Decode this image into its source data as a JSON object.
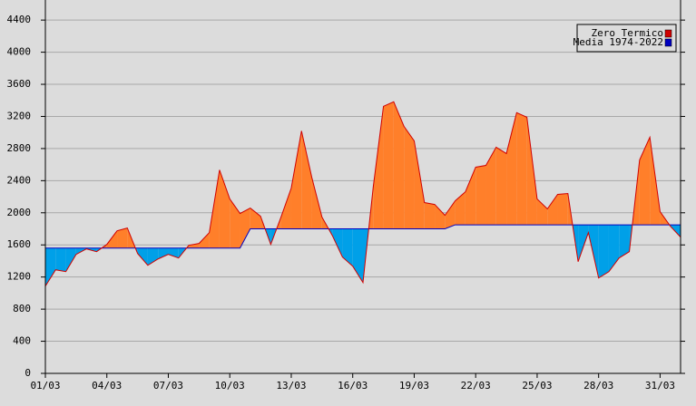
{
  "chart_data": {
    "type": "area",
    "categories": [
      "01/03",
      null,
      null,
      null,
      null,
      null,
      "04/03",
      null,
      null,
      null,
      null,
      null,
      "07/03",
      null,
      null,
      null,
      null,
      null,
      "10/03",
      null,
      null,
      null,
      null,
      null,
      "13/03",
      null,
      null,
      null,
      null,
      null,
      "16/03",
      null,
      null,
      null,
      null,
      null,
      "19/03",
      null,
      null,
      null,
      null,
      null,
      "22/03",
      null,
      null,
      null,
      null,
      null,
      "25/03",
      null,
      null,
      null,
      null,
      null,
      "28/03",
      null,
      null,
      null,
      null,
      null,
      "31/03",
      null,
      null
    ],
    "series": [
      {
        "name": "Zero Termico",
        "color": "#d00000",
        "values": [
          1086,
          1290,
          1267,
          1482,
          1550,
          1516,
          1606,
          1776,
          1810,
          1493,
          1346,
          1425,
          1482,
          1437,
          1595,
          1618,
          1753,
          2534,
          2172,
          1991,
          2059,
          1957,
          1606,
          1946,
          2308,
          3020,
          2443,
          1946,
          1719,
          1448,
          1335,
          1131,
          2319,
          3326,
          3382,
          3077,
          2896,
          2127,
          2104,
          1968,
          2149,
          2262,
          2568,
          2590,
          2817,
          2738,
          3247,
          3190,
          2172,
          2048,
          2229,
          2240,
          1391,
          1753,
          1188,
          1267,
          1437,
          1516,
          2658,
          2941,
          2014,
          1833,
          1697
        ]
      },
      {
        "name": "Media 1974-2022",
        "color": "#0000c0",
        "values": [
          1560,
          1560,
          1560,
          1560,
          1560,
          1560,
          1560,
          1560,
          1560,
          1560,
          1560,
          1560,
          1560,
          1560,
          1560,
          1560,
          1560,
          1560,
          1560,
          1560,
          1800,
          1800,
          1800,
          1800,
          1800,
          1800,
          1800,
          1800,
          1800,
          1800,
          1800,
          1800,
          1800,
          1800,
          1800,
          1800,
          1800,
          1800,
          1800,
          1800,
          1850,
          1850,
          1850,
          1850,
          1850,
          1850,
          1850,
          1850,
          1850,
          1850,
          1850,
          1850,
          1850,
          1850,
          1850,
          1850,
          1850,
          1850,
          1850,
          1850,
          1850,
          1850,
          1850
        ]
      }
    ],
    "fill_above": "#ff7f2a",
    "fill_below": "#00a0e8",
    "ylim": [
      0,
      4650
    ],
    "yticks": [
      0,
      400,
      800,
      1200,
      1600,
      2000,
      2400,
      2800,
      3200,
      3600,
      4000,
      4400
    ],
    "grid": true,
    "legend": "top-right"
  }
}
